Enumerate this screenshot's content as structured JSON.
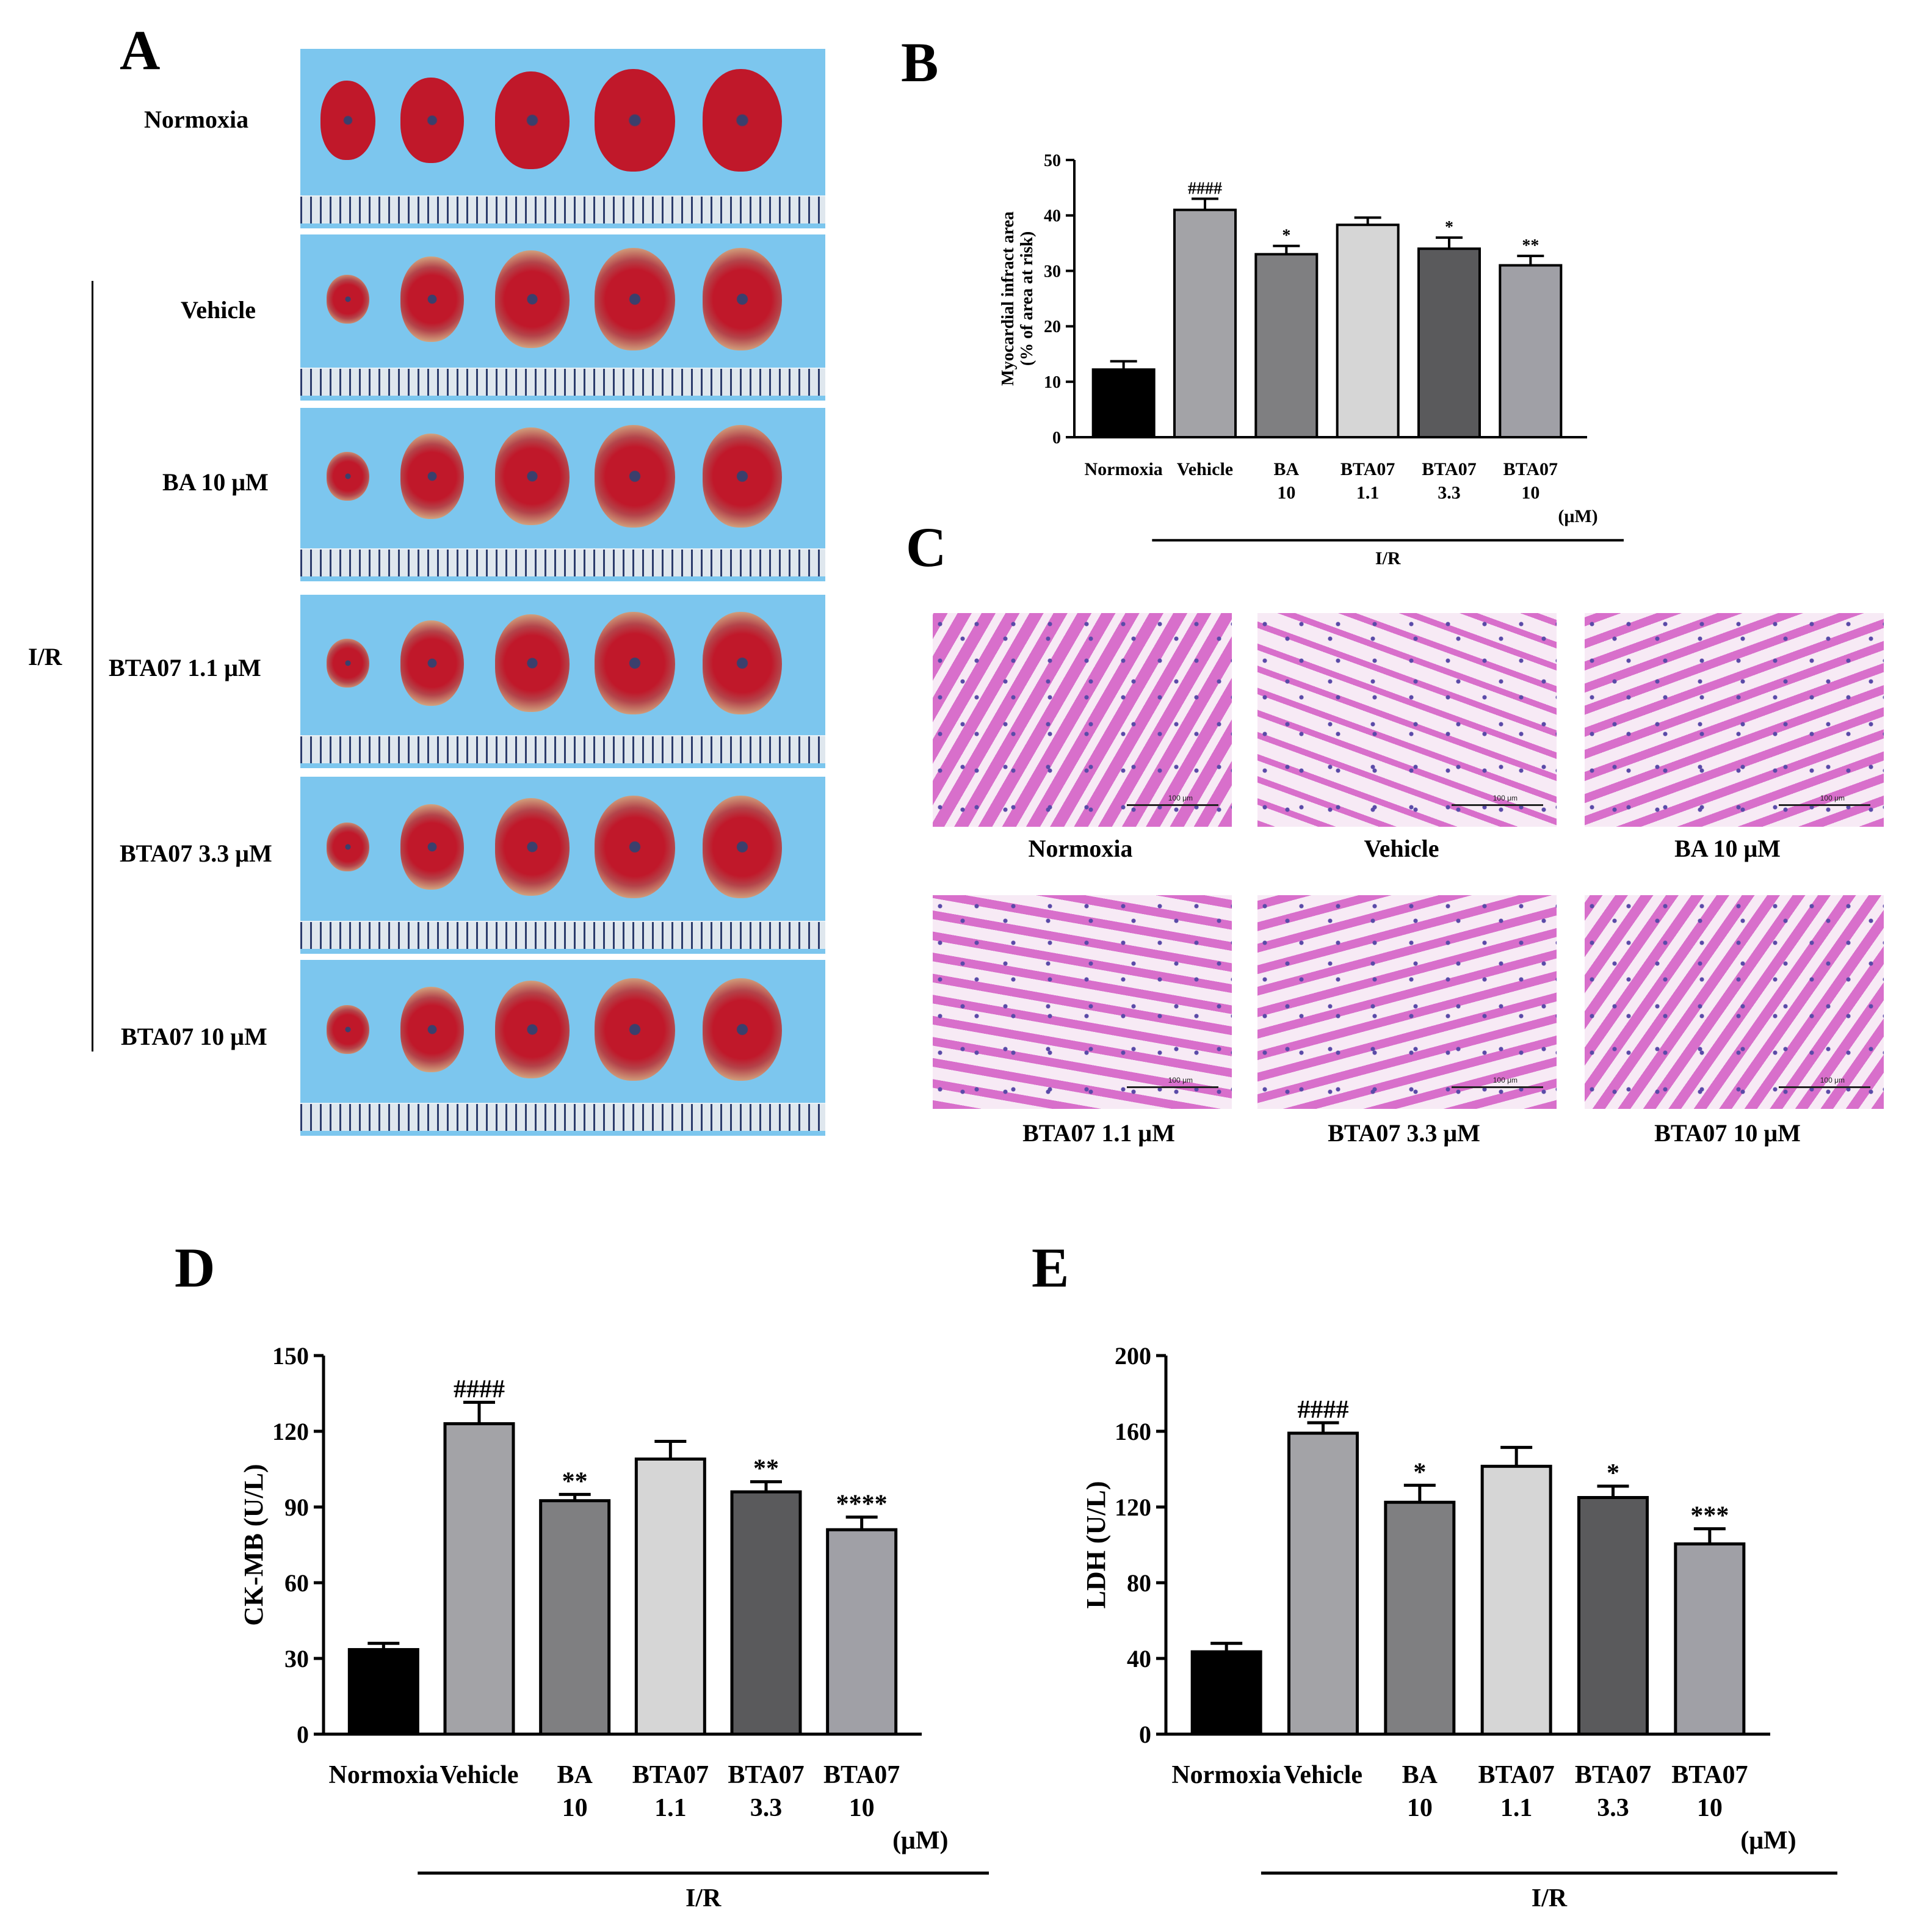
{
  "panels": {
    "a": "A",
    "b": "B",
    "c": "C",
    "d": "D",
    "e": "E"
  },
  "panel_a": {
    "group_label": "I/R",
    "rows": [
      "Normoxia",
      "Vehicle",
      "BA 10 μM",
      "BTA07 1.1 μM",
      "BTA07 3.3 μM",
      "BTA07 10 μM"
    ]
  },
  "panel_c": {
    "labels": [
      "Normoxia",
      "Vehicle",
      "BA 10 μM",
      "BTA07 1.1 μM",
      "BTA07 3.3 μM",
      "BTA07 10 μM"
    ],
    "scale_text": "100 μm"
  },
  "colors": {
    "normoxia": "#000000",
    "vehicle": "#a3a3a7",
    "ba10": "#7f7f81",
    "bta07_1_1": "#d6d6d6",
    "bta07_3_3": "#5a5a5c",
    "bta07_10": "#a0a0a6",
    "photo_bg": "#7cc6ee",
    "heart_red": "#c0182a",
    "heart_pale": "#d9b98a",
    "he_pink": "#d86fcb"
  },
  "chart_data": [
    {
      "id": "B",
      "type": "bar",
      "title": "",
      "ylabel": "Myocardial infract area (% of area at risk)",
      "ylim": [
        0,
        50
      ],
      "yticks": [
        0,
        10,
        20,
        30,
        40,
        50
      ],
      "categories": [
        [
          "Normoxia"
        ],
        [
          "Vehicle"
        ],
        [
          "BA",
          "10"
        ],
        [
          "BTA07",
          "1.1"
        ],
        [
          "BTA07",
          "3.3"
        ],
        [
          "BTA07",
          "10",
          "(μM)"
        ]
      ],
      "values": [
        12.2,
        41.0,
        33.0,
        38.3,
        34.0,
        31.0
      ],
      "errors": [
        1.5,
        2.0,
        1.5,
        1.3,
        2.0,
        1.7
      ],
      "annotations": [
        "",
        "####",
        "*",
        "",
        "*",
        "**"
      ],
      "group_label": "I/R"
    },
    {
      "id": "D",
      "type": "bar",
      "title": "",
      "ylabel": "CK-MB (U/L)",
      "ylim": [
        0,
        150
      ],
      "yticks": [
        0,
        30,
        60,
        90,
        120,
        150
      ],
      "categories": [
        [
          "Normoxia"
        ],
        [
          "Vehicle"
        ],
        [
          "BA",
          "10"
        ],
        [
          "BTA07",
          "1.1"
        ],
        [
          "BTA07",
          "3.3"
        ],
        [
          "BTA07",
          "10",
          "(μM)"
        ]
      ],
      "values": [
        33.5,
        123.0,
        92.5,
        109.0,
        96.0,
        81.0
      ],
      "errors": [
        2.5,
        8.5,
        2.5,
        7.0,
        4.0,
        5.0
      ],
      "annotations": [
        "",
        "####",
        "**",
        "",
        "**",
        "****"
      ],
      "group_label": "I/R"
    },
    {
      "id": "E",
      "type": "bar",
      "title": "",
      "ylabel": "LDH (U/L)",
      "ylim": [
        0,
        200
      ],
      "yticks": [
        0,
        40,
        80,
        120,
        160,
        200
      ],
      "categories": [
        [
          "Normoxia"
        ],
        [
          "Vehicle"
        ],
        [
          "BA",
          "10"
        ],
        [
          "BTA07",
          "1.1"
        ],
        [
          "BTA07",
          "3.3"
        ],
        [
          "BTA07",
          "10",
          "(μM)"
        ]
      ],
      "values": [
        43.5,
        159.0,
        122.5,
        141.5,
        125.0,
        100.5
      ],
      "errors": [
        4.5,
        5.5,
        9.0,
        10.0,
        6.0,
        8.0
      ],
      "annotations": [
        "",
        "####",
        "*",
        "",
        "*",
        "***"
      ],
      "group_label": "I/R"
    }
  ]
}
